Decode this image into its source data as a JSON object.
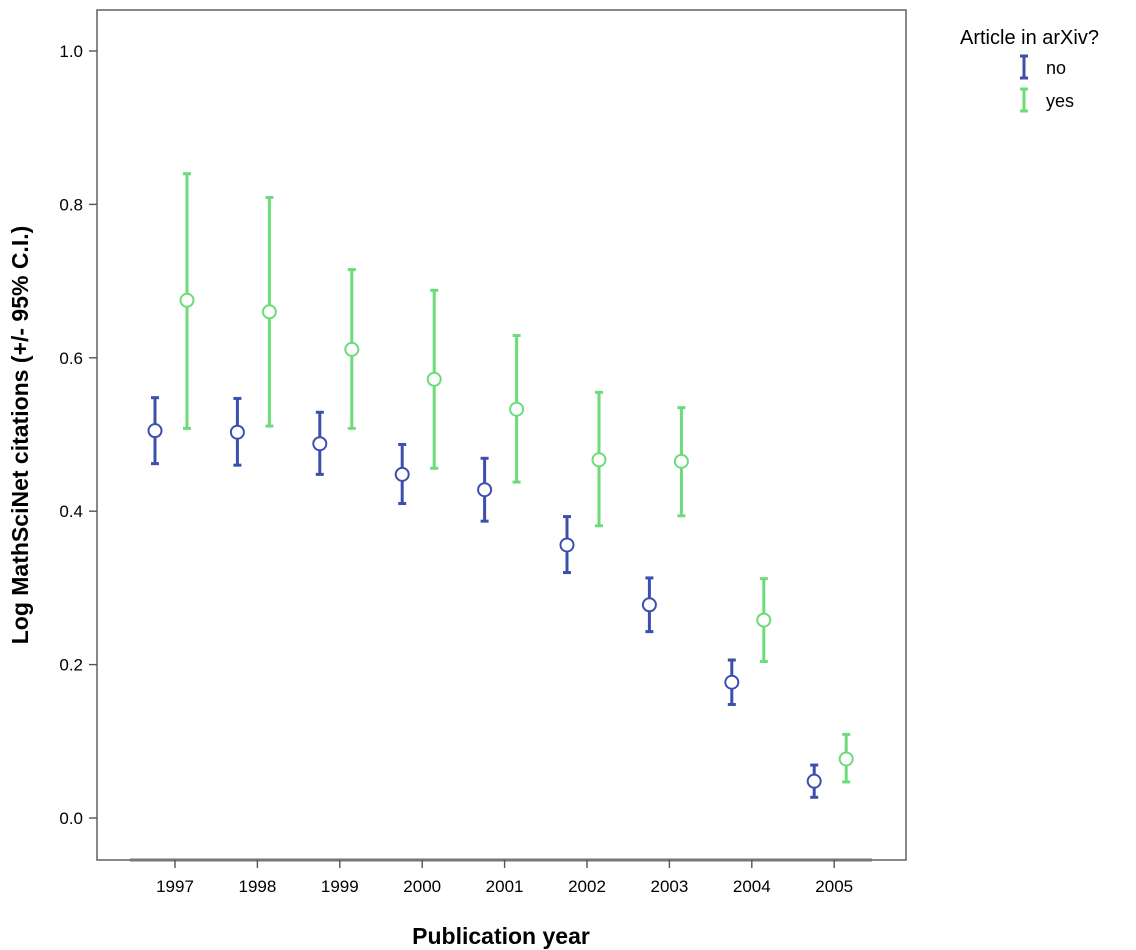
{
  "chart_data": {
    "type": "errorbar",
    "xlabel": "Publication year",
    "ylabel": "Log MathSciNet citations (+/- 95% C.I.)",
    "categories": [
      "1997",
      "1998",
      "1999",
      "2000",
      "2001",
      "2002",
      "2003",
      "2004",
      "2005"
    ],
    "ylim": [
      0.0,
      1.0
    ],
    "yticks": [
      "0.0",
      "0.2",
      "0.4",
      "0.6",
      "0.8",
      "1.0"
    ],
    "grid": false,
    "legend": {
      "title": "Article in arXiv?",
      "placement": "top-right outside",
      "entries": [
        "no",
        "yes"
      ]
    },
    "series": [
      {
        "name": "no",
        "color": "#3c4fae",
        "values": [
          0.505,
          0.503,
          0.488,
          0.448,
          0.428,
          0.356,
          0.278,
          0.177,
          0.048
        ],
        "lower": [
          0.462,
          0.46,
          0.448,
          0.41,
          0.387,
          0.32,
          0.243,
          0.148,
          0.027
        ],
        "upper": [
          0.548,
          0.547,
          0.529,
          0.487,
          0.469,
          0.393,
          0.313,
          0.206,
          0.069
        ]
      },
      {
        "name": "yes",
        "color": "#6edb7a",
        "values": [
          0.675,
          0.66,
          0.611,
          0.572,
          0.533,
          0.467,
          0.465,
          0.258,
          0.077
        ],
        "lower": [
          0.508,
          0.511,
          0.508,
          0.456,
          0.438,
          0.381,
          0.394,
          0.204,
          0.047
        ],
        "upper": [
          0.84,
          0.809,
          0.715,
          0.688,
          0.629,
          0.555,
          0.535,
          0.312,
          0.109
        ]
      }
    ]
  }
}
